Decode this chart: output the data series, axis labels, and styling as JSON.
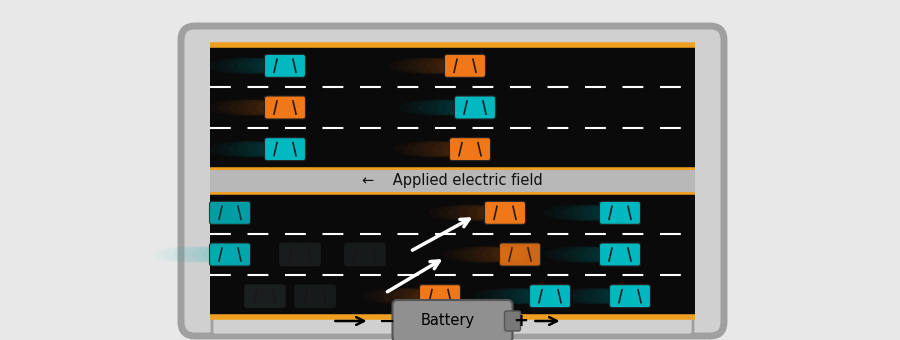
{
  "bg_color": "#e8e8e8",
  "road_color": "#0a0a0a",
  "road_border_color": "#f0a020",
  "lane_line_color": "#ffffff",
  "car_cyan": "#00b8c0",
  "car_orange": "#f07818",
  "car_dark": "#303838",
  "circuit_fill": "#d0d0d0",
  "circuit_border": "#a0a0a0",
  "battery_body": "#909090",
  "battery_cap": "#787878",
  "gray_divider": "#b8b8b8",
  "field_label": "←    Applied electric field",
  "battery_label": "Battery",
  "fig_w": 9.0,
  "fig_h": 3.4,
  "dpi": 100
}
